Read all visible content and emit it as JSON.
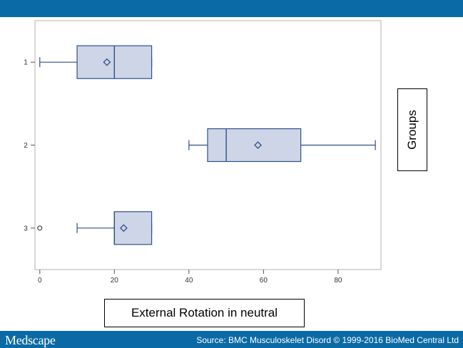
{
  "header": {
    "bar_color": "#0a6aa5"
  },
  "footer": {
    "brand": "Medscape",
    "source": "Source: BMC Musculoskelet Disord © 1999-2016 BioMed Central Ltd",
    "bar_color": "#0a6aa5"
  },
  "chart_data": {
    "type": "boxplot",
    "orientation": "horizontal",
    "xlabel": "External Rotation in neutral",
    "ylabel": "Groups",
    "x_ticks": [
      0,
      20,
      40,
      60,
      80
    ],
    "xlim": [
      -1.3,
      91.5
    ],
    "categories": [
      "1",
      "2",
      "3"
    ],
    "series": [
      {
        "group": "1",
        "whisker_low": 0,
        "q1": 10,
        "median": 20,
        "q3": 30,
        "whisker_high": 30,
        "mean": 18,
        "outliers": []
      },
      {
        "group": "2",
        "whisker_low": 40,
        "q1": 45,
        "median": 50,
        "q3": 70,
        "whisker_high": 90,
        "mean": 58.5,
        "outliers": []
      },
      {
        "group": "3",
        "whisker_low": 10,
        "q1": 20,
        "median": 20,
        "q3": 30,
        "whisker_high": 30,
        "mean": 22.5,
        "outliers": [
          0
        ]
      }
    ],
    "box_fill": "#cdd5e6",
    "line_color": "#2e4f8f",
    "grid": false,
    "legend": "none"
  }
}
